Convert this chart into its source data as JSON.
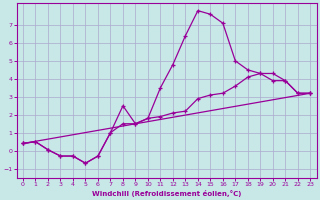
{
  "bg_color": "#c8e8e8",
  "grid_color": "#aaaacc",
  "line_color": "#990099",
  "marker": "*",
  "xlabel": "Windchill (Refroidissement éolien,°C)",
  "xlim": [
    -0.5,
    23.5
  ],
  "ylim": [
    -1.5,
    8.2
  ],
  "xticks": [
    0,
    1,
    2,
    3,
    4,
    5,
    6,
    7,
    8,
    9,
    10,
    11,
    12,
    13,
    14,
    15,
    16,
    17,
    18,
    19,
    20,
    21,
    22,
    23
  ],
  "yticks": [
    -1,
    0,
    1,
    2,
    3,
    4,
    5,
    6,
    7
  ],
  "line1_x": [
    0,
    1,
    2,
    3,
    4,
    5,
    6,
    7,
    8,
    9,
    10,
    11,
    12,
    13,
    14,
    15,
    16,
    17,
    18,
    19,
    20,
    21,
    22,
    23
  ],
  "line1_y": [
    0.4,
    0.5,
    0.05,
    -0.3,
    -0.3,
    -0.7,
    -0.3,
    1.0,
    2.5,
    1.5,
    1.8,
    3.5,
    4.8,
    6.4,
    7.8,
    7.6,
    7.1,
    5.0,
    4.5,
    4.3,
    3.9,
    3.9,
    3.2,
    3.2
  ],
  "line2_x": [
    0,
    1,
    2,
    3,
    4,
    5,
    6,
    7,
    8,
    9,
    10,
    11,
    12,
    13,
    14,
    15,
    16,
    17,
    18,
    19,
    20,
    21,
    22,
    23
  ],
  "line2_y": [
    0.4,
    0.5,
    0.05,
    -0.3,
    -0.3,
    -0.7,
    -0.3,
    1.0,
    1.5,
    1.5,
    1.8,
    1.9,
    2.1,
    2.2,
    2.9,
    3.1,
    3.2,
    3.6,
    4.1,
    4.3,
    4.3,
    3.9,
    3.2,
    3.2
  ],
  "line3_x": [
    0,
    23
  ],
  "line3_y": [
    0.4,
    3.2
  ]
}
